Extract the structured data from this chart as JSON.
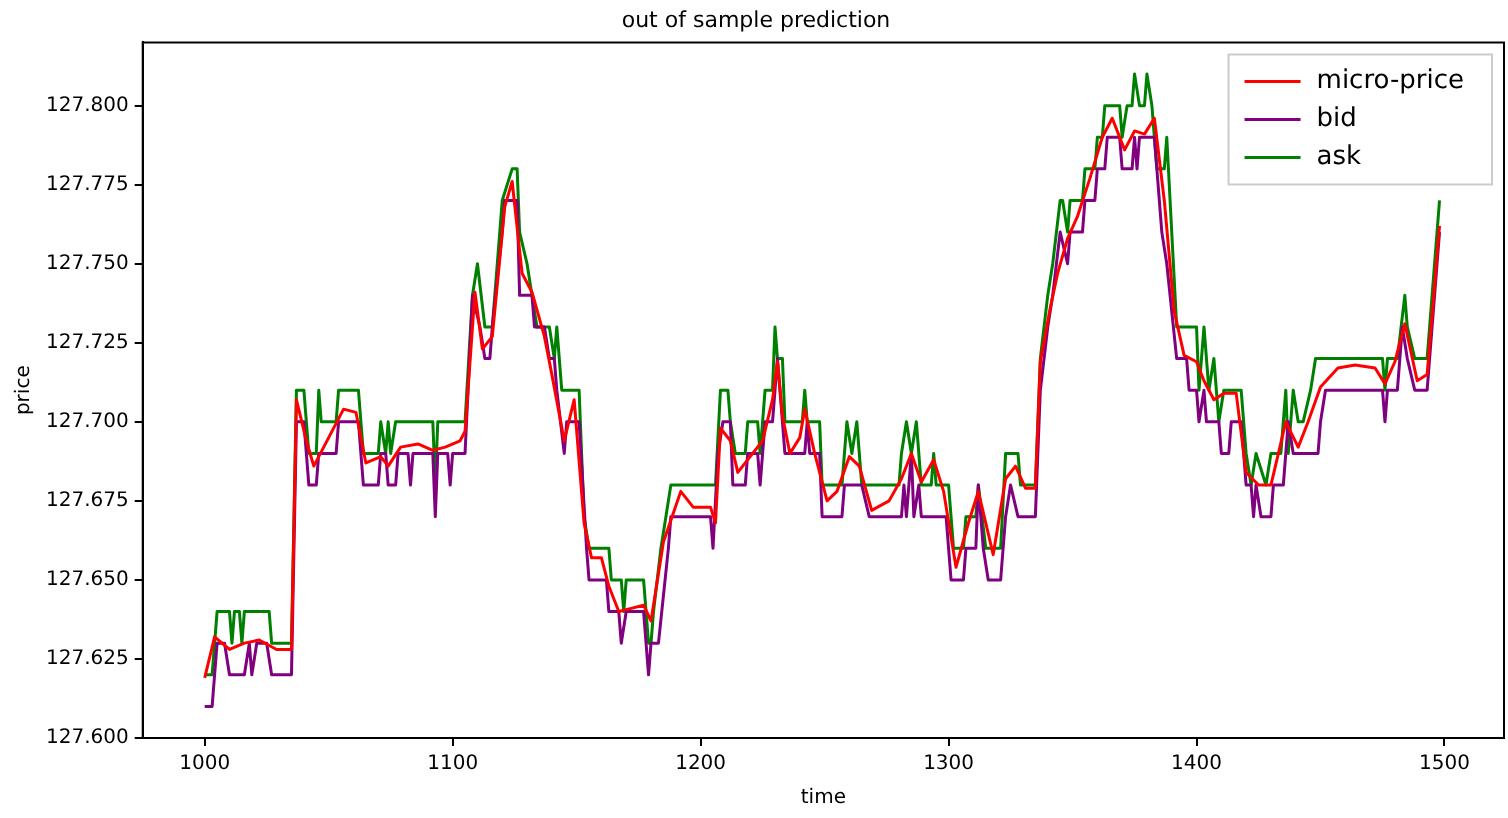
{
  "chart_data": {
    "type": "line",
    "title": "out of sample prediction",
    "xlabel": "time",
    "ylabel": "price",
    "legend": "top right",
    "xlim": [
      975,
      1524
    ],
    "xticks": [
      1000,
      1100,
      1200,
      1300,
      1400,
      1500
    ],
    "ylim": [
      127.6,
      127.82
    ],
    "yticks": [
      {
        "value": 127.6,
        "label": "127.600"
      },
      {
        "value": 127.625,
        "label": "127.625"
      },
      {
        "value": 127.65,
        "label": "127.650"
      },
      {
        "value": 127.675,
        "label": "127.675"
      },
      {
        "value": 127.7,
        "label": "127.700"
      },
      {
        "value": 127.725,
        "label": "127.725"
      },
      {
        "value": 127.75,
        "label": "127.750"
      },
      {
        "value": 127.775,
        "label": "127.775"
      },
      {
        "value": 127.8,
        "label": "127.800"
      }
    ],
    "series": [
      {
        "name": "micro-price",
        "color": "#ff0000",
        "x": [
          1000,
          1004,
          1010,
          1016,
          1022,
          1029,
          1035,
          1037,
          1041,
          1044,
          1048,
          1056,
          1061,
          1065,
          1071,
          1074,
          1079,
          1086,
          1092,
          1097,
          1103,
          1105,
          1109,
          1112,
          1116,
          1121,
          1124,
          1128,
          1132,
          1137,
          1140,
          1145,
          1149,
          1153,
          1156,
          1160,
          1163,
          1167,
          1172,
          1177,
          1180,
          1185,
          1192,
          1197,
          1204,
          1206,
          1208,
          1212,
          1215,
          1221,
          1225,
          1229,
          1231,
          1233,
          1236,
          1240,
          1242,
          1246,
          1251,
          1255,
          1260,
          1264,
          1269,
          1276,
          1281,
          1285,
          1289,
          1294,
          1298,
          1303,
          1308,
          1312,
          1318,
          1323,
          1327,
          1331,
          1335,
          1337,
          1341,
          1344,
          1348,
          1352,
          1357,
          1362,
          1366,
          1371,
          1375,
          1379,
          1383,
          1387,
          1391,
          1395,
          1400,
          1403,
          1407,
          1411,
          1416,
          1420,
          1425,
          1430,
          1436,
          1441,
          1445,
          1450,
          1457,
          1464,
          1472,
          1476,
          1480,
          1484,
          1489,
          1493,
          1498
        ],
        "values": [
          127.619,
          127.632,
          127.628,
          127.63,
          127.631,
          127.628,
          127.628,
          127.707,
          127.694,
          127.686,
          127.692,
          127.704,
          127.703,
          127.687,
          127.689,
          127.686,
          127.692,
          127.693,
          127.691,
          127.692,
          127.694,
          127.697,
          127.741,
          127.723,
          127.727,
          127.768,
          127.776,
          127.747,
          127.741,
          127.727,
          127.715,
          127.694,
          127.707,
          127.668,
          127.657,
          127.657,
          127.648,
          127.64,
          127.641,
          127.642,
          127.637,
          127.662,
          127.678,
          127.673,
          127.673,
          127.668,
          127.698,
          127.694,
          127.684,
          127.69,
          127.694,
          127.707,
          127.719,
          127.702,
          127.69,
          127.695,
          127.704,
          127.69,
          127.675,
          127.678,
          127.689,
          127.686,
          127.672,
          127.675,
          127.682,
          127.69,
          127.681,
          127.688,
          127.678,
          127.654,
          127.668,
          127.678,
          127.658,
          127.682,
          127.686,
          127.679,
          127.679,
          127.719,
          127.736,
          127.747,
          127.758,
          127.765,
          127.777,
          127.79,
          127.796,
          127.786,
          127.792,
          127.791,
          127.796,
          127.77,
          127.735,
          127.721,
          127.719,
          127.713,
          127.707,
          127.709,
          127.709,
          127.684,
          127.68,
          127.68,
          127.7,
          127.692,
          127.7,
          127.711,
          127.717,
          127.718,
          127.717,
          127.712,
          127.719,
          127.731,
          127.713,
          127.715,
          127.762
        ]
      },
      {
        "name": "bid",
        "color": "#800080",
        "x": [
          1000,
          1003,
          1005,
          1008,
          1010,
          1016,
          1018,
          1019,
          1021,
          1025,
          1027,
          1035,
          1037,
          1040,
          1042,
          1045,
          1046,
          1053,
          1054,
          1062,
          1064,
          1070,
          1071,
          1073,
          1074,
          1077,
          1078,
          1082,
          1083,
          1084,
          1092,
          1093,
          1094,
          1098,
          1099,
          1100,
          1105,
          1108,
          1111,
          1113,
          1115,
          1116,
          1120,
          1121,
          1126,
          1127,
          1132,
          1133,
          1137,
          1139,
          1141,
          1142,
          1145,
          1146,
          1151,
          1154,
          1155,
          1162,
          1163,
          1167,
          1168,
          1170,
          1177,
          1179,
          1180,
          1183,
          1187,
          1188,
          1204,
          1205,
          1207,
          1209,
          1212,
          1213,
          1218,
          1219,
          1223,
          1224,
          1225,
          1226,
          1229,
          1231,
          1232,
          1234,
          1242,
          1243,
          1244,
          1248,
          1249,
          1257,
          1258,
          1265,
          1268,
          1281,
          1282,
          1283,
          1285,
          1286,
          1288,
          1289,
          1299,
          1301,
          1306,
          1307,
          1311,
          1312,
          1314,
          1316,
          1321,
          1323,
          1325,
          1328,
          1335,
          1337,
          1340,
          1342,
          1345,
          1348,
          1349,
          1354,
          1355,
          1359,
          1360,
          1363,
          1364,
          1369,
          1370,
          1374,
          1375,
          1376,
          1377,
          1383,
          1386,
          1388,
          1392,
          1396,
          1397,
          1400,
          1401,
          1403,
          1404,
          1409,
          1410,
          1413,
          1414,
          1418,
          1420,
          1422,
          1423,
          1424,
          1426,
          1430,
          1431,
          1435,
          1437,
          1439,
          1449,
          1450,
          1452,
          1475,
          1476,
          1477,
          1481,
          1483,
          1485,
          1488,
          1493,
          1498
        ],
        "values": [
          127.61,
          127.61,
          127.63,
          127.63,
          127.62,
          127.62,
          127.63,
          127.62,
          127.63,
          127.63,
          127.62,
          127.62,
          127.7,
          127.7,
          127.68,
          127.68,
          127.69,
          127.69,
          127.7,
          127.7,
          127.68,
          127.68,
          127.69,
          127.69,
          127.68,
          127.68,
          127.69,
          127.69,
          127.68,
          127.69,
          127.69,
          127.67,
          127.69,
          127.69,
          127.68,
          127.69,
          127.69,
          127.74,
          127.73,
          127.72,
          127.72,
          127.73,
          127.76,
          127.77,
          127.77,
          127.74,
          127.74,
          127.73,
          127.73,
          127.72,
          127.72,
          127.71,
          127.69,
          127.7,
          127.7,
          127.66,
          127.65,
          127.65,
          127.64,
          127.64,
          127.63,
          127.64,
          127.64,
          127.62,
          127.63,
          127.63,
          127.66,
          127.67,
          127.67,
          127.66,
          127.69,
          127.7,
          127.7,
          127.68,
          127.68,
          127.69,
          127.69,
          127.68,
          127.69,
          127.7,
          127.7,
          127.72,
          127.71,
          127.69,
          127.69,
          127.7,
          127.69,
          127.69,
          127.67,
          127.67,
          127.68,
          127.68,
          127.67,
          127.67,
          127.68,
          127.67,
          127.69,
          127.67,
          127.68,
          127.67,
          127.67,
          127.65,
          127.65,
          127.66,
          127.66,
          127.68,
          127.66,
          127.65,
          127.65,
          127.67,
          127.68,
          127.67,
          127.67,
          127.71,
          127.73,
          127.74,
          127.76,
          127.75,
          127.76,
          127.76,
          127.77,
          127.77,
          127.78,
          127.78,
          127.79,
          127.79,
          127.78,
          127.78,
          127.79,
          127.78,
          127.79,
          127.79,
          127.76,
          127.75,
          127.72,
          127.72,
          127.71,
          127.71,
          127.7,
          127.71,
          127.7,
          127.7,
          127.69,
          127.69,
          127.7,
          127.7,
          127.68,
          127.68,
          127.67,
          127.68,
          127.67,
          127.67,
          127.68,
          127.68,
          127.7,
          127.69,
          127.69,
          127.7,
          127.71,
          127.71,
          127.7,
          127.71,
          127.71,
          127.73,
          127.72,
          127.71,
          127.71,
          127.76
        ]
      },
      {
        "name": "ask",
        "color": "#008000",
        "x": [
          1000,
          1003,
          1005,
          1010,
          1011,
          1012,
          1014,
          1015,
          1016,
          1026,
          1027,
          1035,
          1037,
          1040,
          1042,
          1045,
          1046,
          1047,
          1053,
          1054,
          1062,
          1064,
          1070,
          1071,
          1073,
          1074,
          1075,
          1077,
          1092,
          1093,
          1094,
          1105,
          1108,
          1110,
          1113,
          1116,
          1118,
          1120,
          1124,
          1126,
          1127,
          1130,
          1134,
          1139,
          1141,
          1142,
          1144,
          1151,
          1153,
          1155,
          1163,
          1164,
          1168,
          1169,
          1170,
          1177,
          1179,
          1180,
          1181,
          1184,
          1186,
          1188,
          1206,
          1208,
          1211,
          1212,
          1214,
          1218,
          1219,
          1223,
          1224,
          1226,
          1229,
          1230,
          1231,
          1233,
          1234,
          1241,
          1242,
          1243,
          1248,
          1249,
          1257,
          1259,
          1261,
          1263,
          1265,
          1280,
          1281,
          1283,
          1285,
          1287,
          1289,
          1293,
          1294,
          1295,
          1300,
          1302,
          1306,
          1307,
          1311,
          1312,
          1315,
          1321,
          1323,
          1328,
          1329,
          1335,
          1337,
          1340,
          1342,
          1345,
          1346,
          1348,
          1349,
          1354,
          1355,
          1359,
          1360,
          1362,
          1363,
          1369,
          1370,
          1372,
          1374,
          1375,
          1377,
          1379,
          1380,
          1382,
          1384,
          1387,
          1388,
          1392,
          1400,
          1401,
          1403,
          1405,
          1407,
          1409,
          1411,
          1418,
          1420,
          1422,
          1424,
          1428,
          1430,
          1434,
          1436,
          1437,
          1439,
          1441,
          1443,
          1446,
          1448,
          1475,
          1476,
          1477,
          1481,
          1484,
          1485,
          1488,
          1493,
          1498
        ],
        "values": [
          127.62,
          127.62,
          127.64,
          127.64,
          127.63,
          127.64,
          127.64,
          127.63,
          127.64,
          127.64,
          127.63,
          127.63,
          127.71,
          127.71,
          127.69,
          127.69,
          127.71,
          127.7,
          127.7,
          127.71,
          127.71,
          127.69,
          127.69,
          127.7,
          127.69,
          127.7,
          127.69,
          127.7,
          127.7,
          127.68,
          127.7,
          127.7,
          127.74,
          127.75,
          127.73,
          127.73,
          127.75,
          127.77,
          127.78,
          127.78,
          127.76,
          127.75,
          127.73,
          127.73,
          127.72,
          127.73,
          127.71,
          127.71,
          127.67,
          127.66,
          127.66,
          127.65,
          127.65,
          127.64,
          127.65,
          127.65,
          127.63,
          127.63,
          127.64,
          127.66,
          127.67,
          127.68,
          127.68,
          127.71,
          127.71,
          127.7,
          127.69,
          127.69,
          127.7,
          127.7,
          127.69,
          127.71,
          127.71,
          127.73,
          127.72,
          127.72,
          127.7,
          127.7,
          127.71,
          127.7,
          127.7,
          127.68,
          127.68,
          127.7,
          127.69,
          127.7,
          127.68,
          127.68,
          127.69,
          127.7,
          127.69,
          127.7,
          127.68,
          127.68,
          127.69,
          127.68,
          127.68,
          127.66,
          127.66,
          127.67,
          127.67,
          127.68,
          127.66,
          127.66,
          127.69,
          127.69,
          127.68,
          127.68,
          127.72,
          127.74,
          127.75,
          127.77,
          127.77,
          127.76,
          127.77,
          127.77,
          127.78,
          127.78,
          127.79,
          127.79,
          127.8,
          127.8,
          127.79,
          127.8,
          127.8,
          127.81,
          127.8,
          127.8,
          127.81,
          127.8,
          127.78,
          127.78,
          127.79,
          127.73,
          127.73,
          127.71,
          127.73,
          127.71,
          127.72,
          127.7,
          127.71,
          127.71,
          127.69,
          127.68,
          127.69,
          127.68,
          127.69,
          127.69,
          127.71,
          127.69,
          127.71,
          127.7,
          127.7,
          127.71,
          127.72,
          127.72,
          127.71,
          127.72,
          127.72,
          127.74,
          127.73,
          127.72,
          127.72,
          127.77
        ]
      }
    ]
  }
}
